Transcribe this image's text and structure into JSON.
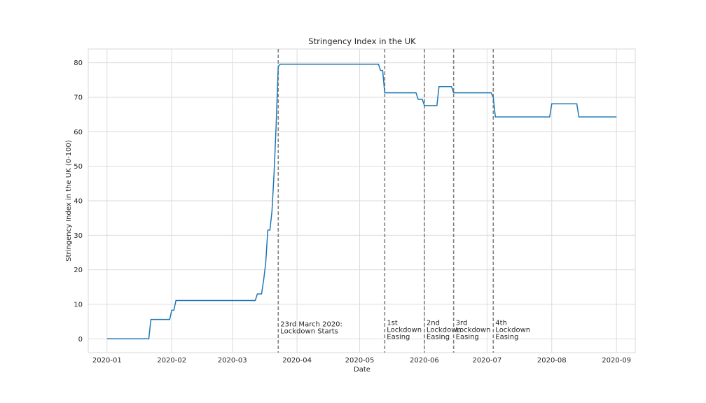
{
  "chart_data": {
    "type": "line",
    "title": "Stringency Index in the UK",
    "xlabel": "Date",
    "ylabel": "Stringency Index in the UK (0-100)",
    "xlim": [
      "2019-12-23",
      "2020-09-10"
    ],
    "ylim": [
      -4,
      84
    ],
    "x_ticks": [
      "2020-01",
      "2020-02",
      "2020-03",
      "2020-04",
      "2020-05",
      "2020-06",
      "2020-07",
      "2020-08",
      "2020-09"
    ],
    "y_ticks": [
      0,
      10,
      20,
      30,
      40,
      50,
      60,
      70,
      80
    ],
    "grid": true,
    "series": [
      {
        "color": "#1f77b4",
        "points": [
          [
            "2020-01-01",
            0
          ],
          [
            "2020-01-21",
            0
          ],
          [
            "2020-01-22",
            5.6
          ],
          [
            "2020-01-31",
            5.6
          ],
          [
            "2020-02-01",
            8.3
          ],
          [
            "2020-02-02",
            8.3
          ],
          [
            "2020-02-03",
            11.1
          ],
          [
            "2020-03-12",
            11.1
          ],
          [
            "2020-03-13",
            13
          ],
          [
            "2020-03-15",
            13
          ],
          [
            "2020-03-16",
            17
          ],
          [
            "2020-03-17",
            22
          ],
          [
            "2020-03-18",
            31.5
          ],
          [
            "2020-03-19",
            31.5
          ],
          [
            "2020-03-20",
            37
          ],
          [
            "2020-03-21",
            48
          ],
          [
            "2020-03-22",
            62
          ],
          [
            "2020-03-23",
            79
          ],
          [
            "2020-03-24",
            79.6
          ],
          [
            "2020-05-10",
            79.6
          ],
          [
            "2020-05-11",
            77.8
          ],
          [
            "2020-05-12",
            77.8
          ],
          [
            "2020-05-13",
            71.3
          ],
          [
            "2020-05-28",
            71.3
          ],
          [
            "2020-05-29",
            69.4
          ],
          [
            "2020-05-31",
            69.4
          ],
          [
            "2020-06-01",
            67.6
          ],
          [
            "2020-06-07",
            67.6
          ],
          [
            "2020-06-08",
            73.1
          ],
          [
            "2020-06-14",
            73.1
          ],
          [
            "2020-06-15",
            71.3
          ],
          [
            "2020-07-03",
            71.3
          ],
          [
            "2020-07-04",
            69.9
          ],
          [
            "2020-07-05",
            64.3
          ],
          [
            "2020-07-31",
            64.3
          ],
          [
            "2020-08-01",
            68.1
          ],
          [
            "2020-08-13",
            68.1
          ],
          [
            "2020-08-14",
            64.3
          ],
          [
            "2020-09-01",
            64.3
          ]
        ]
      }
    ],
    "vlines": [
      {
        "x": "2020-03-23",
        "color": "#808080",
        "style": "dashed",
        "label": [
          "23rd March 2020:",
          "Lockdown Starts"
        ]
      },
      {
        "x": "2020-05-13",
        "color": "#808080",
        "style": "dashed",
        "label": [
          "1st",
          "Lockdown",
          "Easing"
        ]
      },
      {
        "x": "2020-06-01",
        "color": "#808080",
        "style": "dashed",
        "label": [
          "2nd",
          "Lockdown",
          "Easing"
        ]
      },
      {
        "x": "2020-06-15",
        "color": "#808080",
        "style": "dashed",
        "label": [
          "3rd",
          "Lockdown",
          "Easing"
        ]
      },
      {
        "x": "2020-07-04",
        "color": "#808080",
        "style": "dashed",
        "label": [
          "4th",
          "Lockdown",
          "Easing"
        ]
      }
    ]
  }
}
